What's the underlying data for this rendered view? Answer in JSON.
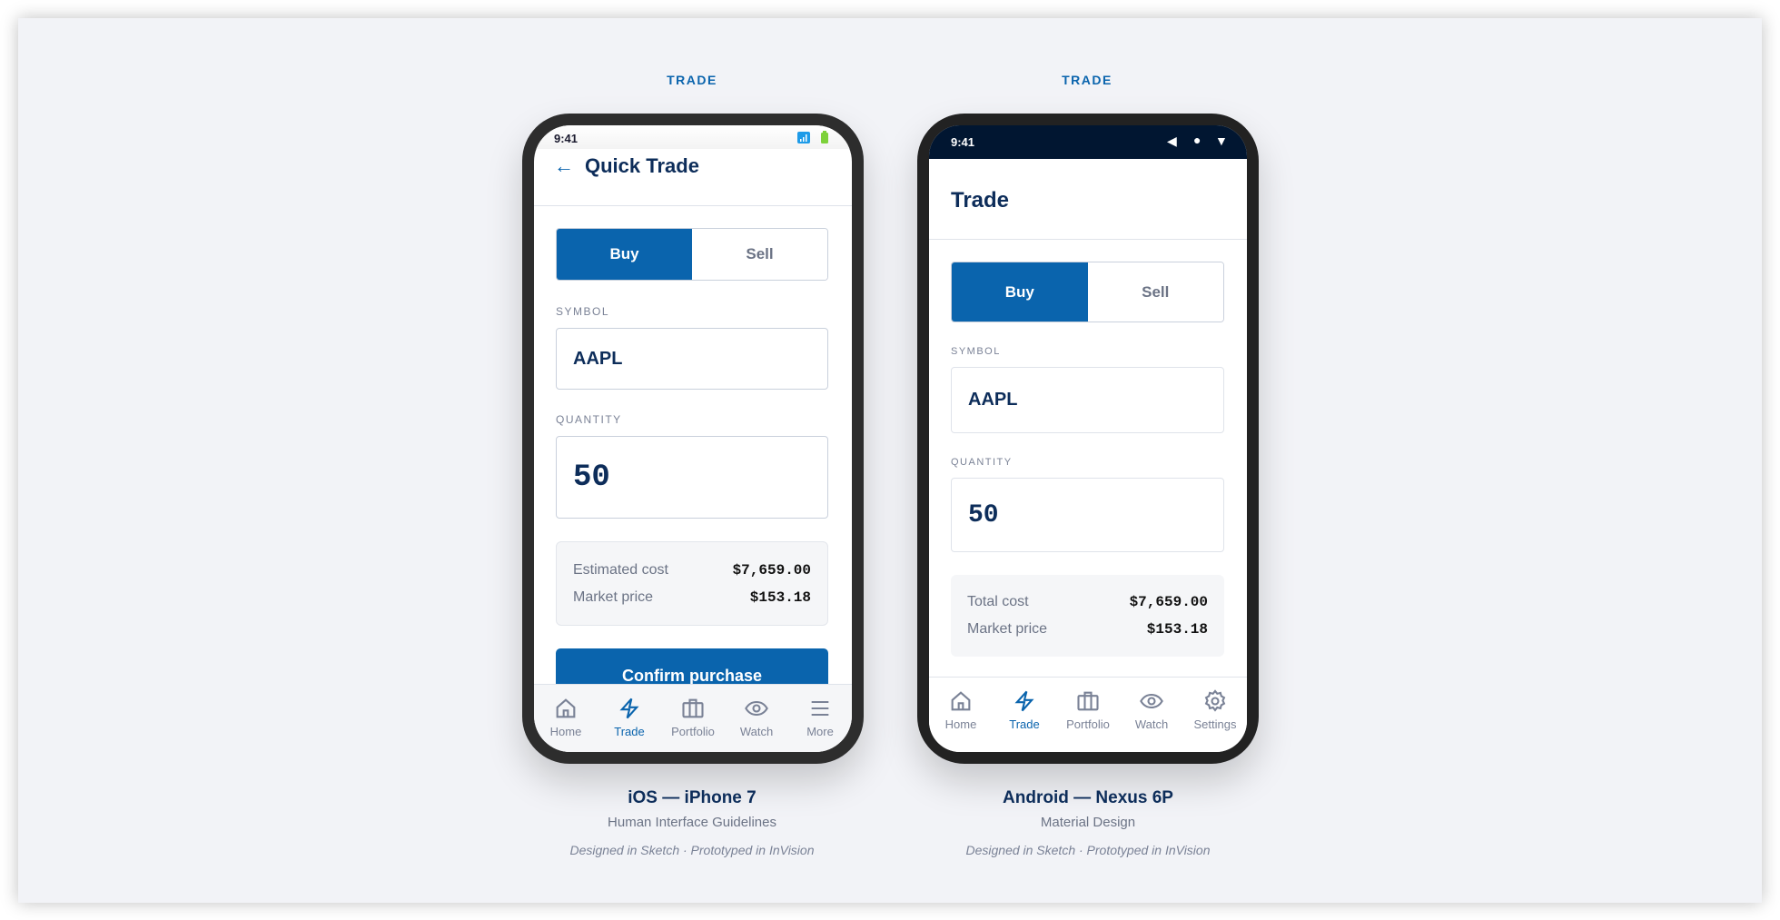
{
  "ios": {
    "column_label": "TRADE",
    "status_time": "9:41",
    "title": "Quick Trade",
    "back_icon": "arrow-left-icon",
    "segment": {
      "buy": "Buy",
      "sell": "Sell",
      "selected": "Buy"
    },
    "symbol_label": "SYMBOL",
    "symbol_value": "AAPL",
    "quantity_label": "QUANTITY",
    "quantity_value": "50",
    "summary": [
      {
        "label": "Estimated cost",
        "value": "$7,659.00"
      },
      {
        "label": "Market price",
        "value": "$153.18"
      }
    ],
    "confirm_label": "Confirm purchase",
    "tabs": [
      {
        "label": "Home",
        "icon": "home-icon"
      },
      {
        "label": "Trade",
        "icon": "bolt-icon",
        "active": true
      },
      {
        "label": "Portfolio",
        "icon": "briefcase-icon"
      },
      {
        "label": "Watch",
        "icon": "eye-icon"
      },
      {
        "label": "More",
        "icon": "menu-icon"
      }
    ],
    "caption_title": "iOS — iPhone 7",
    "caption_subtitle": "Human Interface Guidelines",
    "caption_note": "Designed in Sketch · Prototyped in InVision"
  },
  "android": {
    "column_label": "TRADE",
    "status_time": "9:41",
    "title": "Trade",
    "segment": {
      "buy": "Buy",
      "sell": "Sell",
      "selected": "Buy"
    },
    "symbol_label": "SYMBOL",
    "symbol_value": "AAPL",
    "quantity_label": "QUANTITY",
    "quantity_value": "50",
    "summary": [
      {
        "label": "Total cost",
        "value": "$7,659.00"
      },
      {
        "label": "Market price",
        "value": "$153.18"
      }
    ],
    "tabs": [
      {
        "label": "Home",
        "icon": "home-icon"
      },
      {
        "label": "Trade",
        "icon": "bolt-icon",
        "active": true
      },
      {
        "label": "Portfolio",
        "icon": "briefcase-icon"
      },
      {
        "label": "Watch",
        "icon": "eye-icon"
      },
      {
        "label": "Settings",
        "icon": "gear-icon"
      }
    ],
    "caption_title": "Android — Nexus 6P",
    "caption_subtitle": "Material Design",
    "caption_note": "Designed in Sketch · Prototyped in InVision"
  },
  "colors": {
    "accent": "#0a64ad",
    "navy": "#0d2d5a",
    "android_status": "#011631",
    "background": "#f2f3f7"
  }
}
